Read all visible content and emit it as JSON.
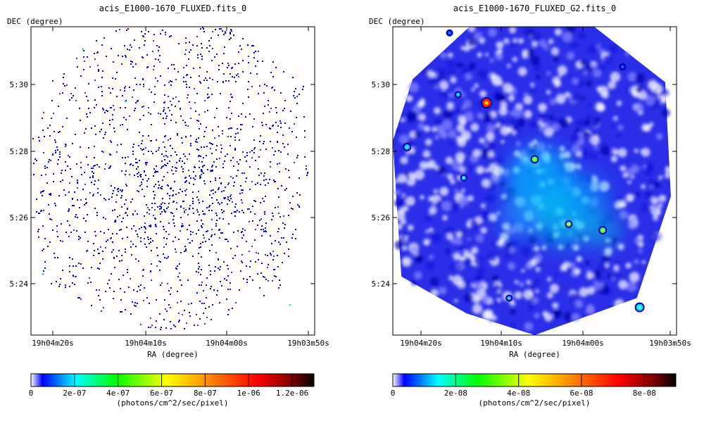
{
  "chart_data": [
    {
      "type": "heatmap",
      "title": "acis_E1000-1670_FLUXED.fits_0",
      "xlabel": "RA (degree)",
      "ylabel": "DEC (degree)",
      "x_ticks": [
        "19h04m20s",
        "19h04m10s",
        "19h04m00s",
        "19h03m50s"
      ],
      "y_ticks": [
        "5:30",
        "5:28",
        "5:26",
        "5:24"
      ],
      "rendering": "sparse photon pixels",
      "colorbar": {
        "label": "(photons/cm^2/sec/pixel)",
        "range": [
          0,
          1.3e-06
        ],
        "ticks": [
          {
            "value": 0,
            "label": "0"
          },
          {
            "value": 2e-07,
            "label": "2e-07"
          },
          {
            "value": 4e-07,
            "label": "4e-07"
          },
          {
            "value": 6e-07,
            "label": "6e-07"
          },
          {
            "value": 8e-07,
            "label": "8e-07"
          },
          {
            "value": 1e-06,
            "label": "1e-06"
          },
          {
            "value": 1.2e-06,
            "label": "1.2e-06"
          }
        ]
      },
      "colors": [
        "#ffffff",
        "#0000ff",
        "#00ffff",
        "#00ff00",
        "#ffff00",
        "#ff8000",
        "#ff0000",
        "#800000",
        "#000000"
      ]
    },
    {
      "type": "heatmap",
      "title": "acis_E1000-1670_FLUXED_G2.fits_0",
      "xlabel": "RA (degree)",
      "ylabel": "DEC (degree)",
      "x_ticks": [
        "19h04m20s",
        "19h04m10s",
        "19h04m00s",
        "19h03m50s"
      ],
      "y_ticks": [
        "5:30",
        "5:28",
        "5:26",
        "5:24"
      ],
      "rendering": "smoothed emission",
      "colorbar": {
        "label": "(photons/cm^2/sec/pixel)",
        "range": [
          0,
          9e-08
        ],
        "ticks": [
          {
            "value": 0,
            "label": "0"
          },
          {
            "value": 2e-08,
            "label": "2e-08"
          },
          {
            "value": 4e-08,
            "label": "4e-08"
          },
          {
            "value": 6e-08,
            "label": "6e-08"
          },
          {
            "value": 8e-08,
            "label": "8e-08"
          }
        ]
      },
      "colors": [
        "#ffffff",
        "#0000ff",
        "#00ffff",
        "#00ff00",
        "#ffff00",
        "#ff8000",
        "#ff0000",
        "#800000",
        "#000000"
      ]
    }
  ]
}
